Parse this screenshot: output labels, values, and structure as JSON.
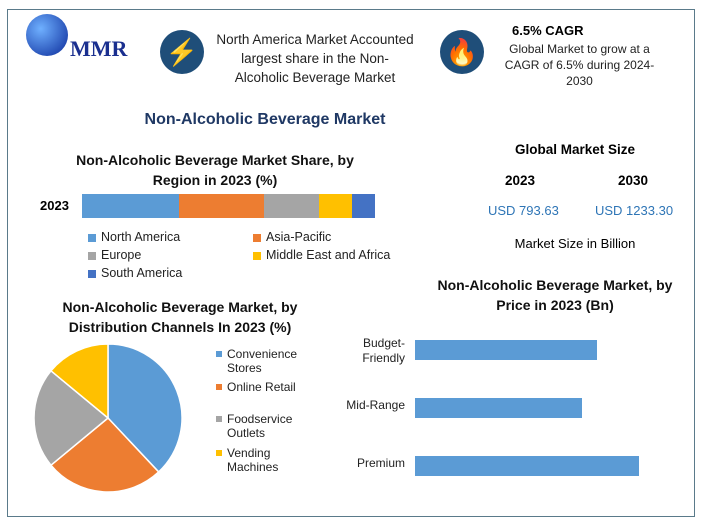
{
  "header": {
    "logo_text": "MMR",
    "highlight1": "North America Market Accounted largest share in the Non-Alcoholic Beverage Market",
    "cagr_title": "6.5% CAGR",
    "cagr_text": "Global Market to grow at a CAGR of 6.5% during 2024-2030",
    "icons": [
      "lightning-icon",
      "flame-icon"
    ]
  },
  "main_title": "Non-Alcoholic Beverage Market",
  "market_size": {
    "title": "Global Market Size",
    "year1": "2023",
    "year2": "2030",
    "value1": "USD 793.63",
    "value2": "USD 1233.30",
    "unit_note": "Market Size in Billion",
    "value_color": "#2e75b6"
  },
  "chart_data": [
    {
      "type": "bar",
      "orientation": "horizontal-stacked",
      "title": "Non-Alcoholic Beverage Market Share, by Region in 2023 (%)",
      "categories": [
        "2023"
      ],
      "series": [
        {
          "name": "North America",
          "values": [
            33
          ],
          "color": "#5b9bd5"
        },
        {
          "name": "Asia-Pacific",
          "values": [
            29
          ],
          "color": "#ed7d31"
        },
        {
          "name": "Europe",
          "values": [
            19
          ],
          "color": "#a5a5a5"
        },
        {
          "name": "Middle East and Africa",
          "values": [
            11
          ],
          "color": "#ffc000"
        },
        {
          "name": "South America",
          "values": [
            8
          ],
          "color": "#4472c4"
        }
      ],
      "legend": "bottom"
    },
    {
      "type": "pie",
      "title": "Non-Alcoholic Beverage Market, by Distribution Channels In 2023 (%)",
      "labels": [
        "Convenience Stores",
        "Online Retail",
        "Foodservice Outlets",
        "Vending Machines"
      ],
      "values": [
        38,
        26,
        22,
        14
      ],
      "colors": [
        "#5b9bd5",
        "#ed7d31",
        "#a5a5a5",
        "#ffc000"
      ],
      "legend": "right"
    },
    {
      "type": "bar",
      "orientation": "horizontal",
      "title": "Non-Alcoholic Beverage Market, by Price in 2023 (Bn)",
      "categories": [
        "Budget-Friendly",
        "Mid-Range",
        "Premium"
      ],
      "values": [
        182,
        167,
        224
      ],
      "color": "#5b9bd5"
    }
  ]
}
